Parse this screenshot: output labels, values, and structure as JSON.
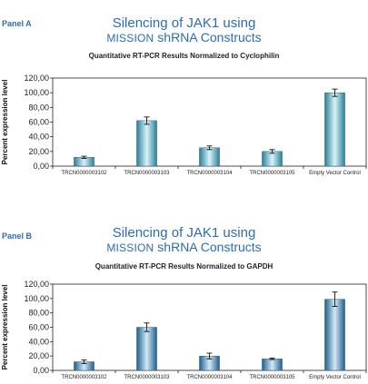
{
  "chart_data": [
    {
      "panel_label": "Panel A",
      "type": "bar",
      "title_line1": "Silencing of JAK1 using",
      "title_line2_sc": "Mission",
      "title_line2_rest": "shRNA Constructs",
      "subtitle": "Quantitative RT-PCR Results Normalized to Cyclophilin",
      "xlabel": "",
      "ylabel": "Percent expression level",
      "ylim": [
        0,
        120
      ],
      "yticks": [
        "0,00",
        "20,00",
        "40,00",
        "60,00",
        "80,00",
        "100,00",
        "120,00"
      ],
      "categories": [
        "TRCN0000003102",
        "TRCN0000003103",
        "TRCN0000003104",
        "TRCN0000003105",
        "Empty Vector Control"
      ],
      "values": [
        12,
        62,
        25,
        20,
        100
      ],
      "errors": [
        1.5,
        5,
        2.5,
        2.5,
        5
      ],
      "grid": false,
      "colors": {
        "bar_dark": "#2a7f9a",
        "bar_light": "#d9f3f9"
      }
    },
    {
      "panel_label": "Panel B",
      "type": "bar",
      "title_line1": "Silencing of JAK1 using",
      "title_line2_sc": "Mission",
      "title_line2_rest": "shRNA Constructs",
      "subtitle": "Quantitative RT-PCR Results Normalized to GAPDH",
      "xlabel": "",
      "ylabel": "Percent expression level",
      "ylim": [
        0,
        120
      ],
      "yticks": [
        "0,00",
        "20,00",
        "40,00",
        "60,00",
        "80,00",
        "100,00",
        "120,00"
      ],
      "categories": [
        "TRCN0000003102",
        "TRCN0000003103",
        "TRCN0000003104",
        "TRCN0000003105",
        "Empty Vector Control"
      ],
      "values": [
        12,
        60,
        20,
        16,
        99
      ],
      "errors": [
        2.5,
        6,
        4,
        1,
        10
      ],
      "grid": false,
      "colors": {
        "bar_dark": "#1e5f8e",
        "bar_light": "#d4e9f5"
      }
    }
  ]
}
